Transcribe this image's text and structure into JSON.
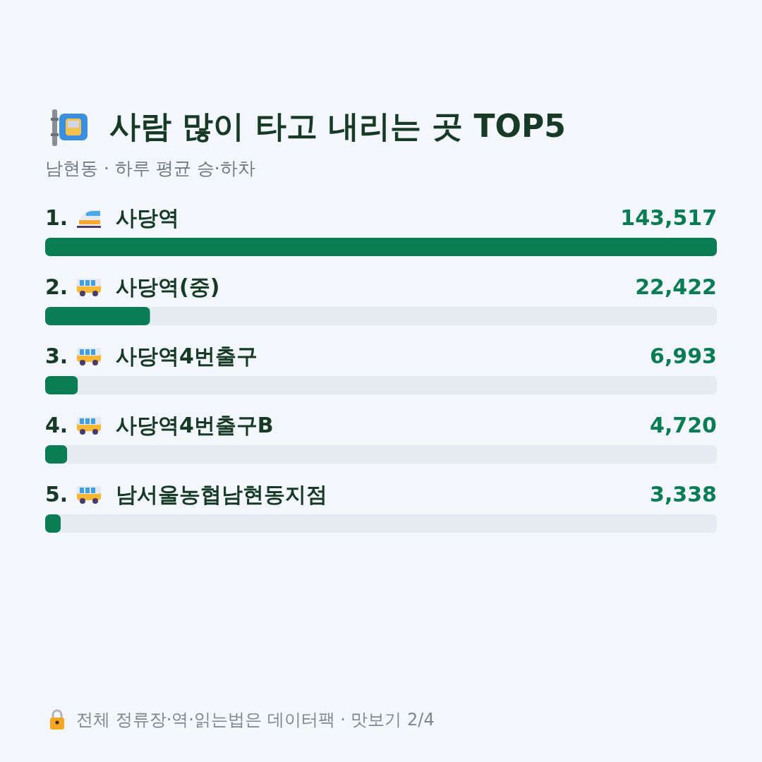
{
  "chart_data": {
    "type": "bar",
    "orientation": "horizontal",
    "title": "사람 많이 타고 내리는 곳 TOP5",
    "subtitle": "남현동 · 하루 평균 승·하차",
    "categories": [
      "1. 사당역",
      "2. 사당역(중)",
      "3. 사당역4번출구",
      "4. 사당역4번출구B",
      "5. 남서울농협남현동지점"
    ],
    "values": [
      143517,
      22422,
      6993,
      4720,
      3338
    ],
    "color": "#0b7d55",
    "value_labels": [
      "143,517",
      "22,422",
      "6,993",
      "4,720",
      "3,338"
    ],
    "annotations": [
      "전체 정류장·역·읽는법은 데이터팩 · 맛보기 2/4"
    ]
  }
}
